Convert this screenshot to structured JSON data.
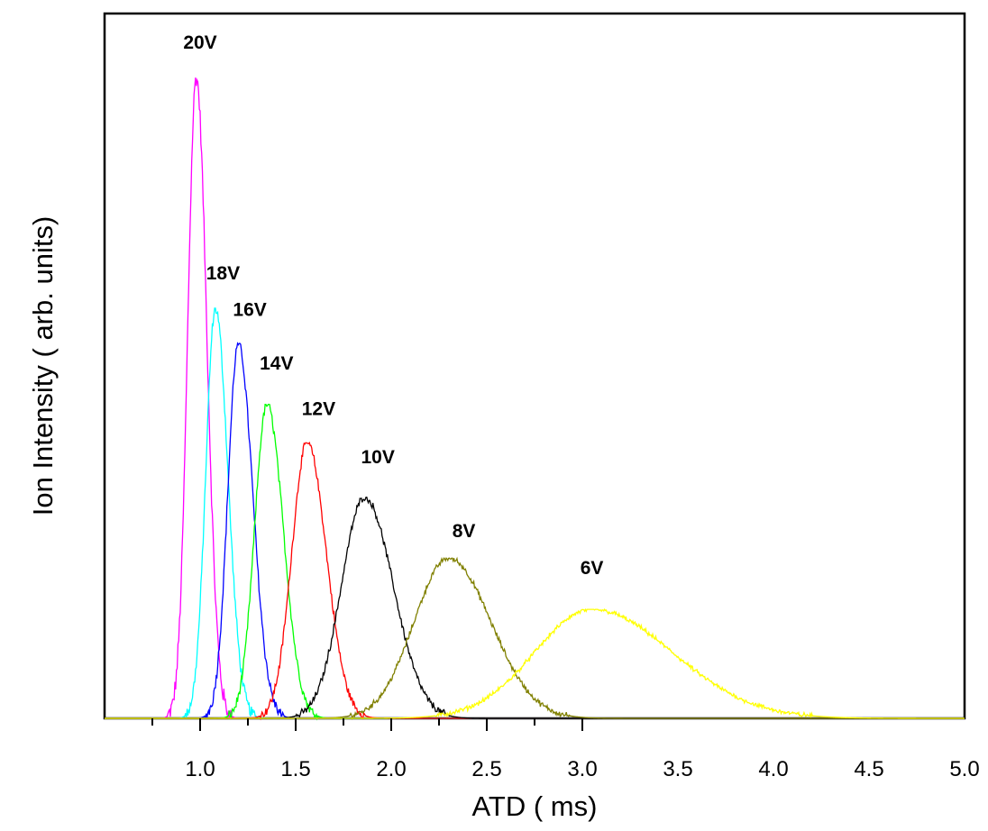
{
  "chart_data": {
    "type": "line",
    "title": "",
    "xlabel": "ATD ( ms)",
    "ylabel": "Ion Intensity ( arb. units)",
    "xlim": [
      0.5,
      5.0
    ],
    "ylim": [
      0,
      1.0
    ],
    "xticks": [
      "1.0",
      "1.5",
      "2.0",
      "2.5",
      "3.0",
      "3.5",
      "4.0",
      "4.5",
      "5.0"
    ],
    "yticks": [],
    "grid": false,
    "legend": "none",
    "series": [
      {
        "name": "20V",
        "label_x": 1.0,
        "label_y": 1.045,
        "color": "#ff00ff",
        "peak_x": 0.98,
        "peak_y": 1.0,
        "sigma_left": 0.045,
        "sigma_right": 0.055
      },
      {
        "name": "18V",
        "label_x": 1.12,
        "label_y": 0.685,
        "color": "#00ffff",
        "peak_x": 1.08,
        "peak_y": 0.64,
        "sigma_left": 0.05,
        "sigma_right": 0.065
      },
      {
        "name": "16V",
        "label_x": 1.26,
        "label_y": 0.628,
        "color": "#0000ff",
        "peak_x": 1.2,
        "peak_y": 0.585,
        "sigma_left": 0.055,
        "sigma_right": 0.075
      },
      {
        "name": "14V",
        "label_x": 1.4,
        "label_y": 0.544,
        "color": "#00ff00",
        "peak_x": 1.35,
        "peak_y": 0.49,
        "sigma_left": 0.065,
        "sigma_right": 0.085
      },
      {
        "name": "12V",
        "label_x": 1.62,
        "label_y": 0.473,
        "color": "#ff0000",
        "peak_x": 1.56,
        "peak_y": 0.43,
        "sigma_left": 0.08,
        "sigma_right": 0.1
      },
      {
        "name": "10V",
        "label_x": 1.93,
        "label_y": 0.398,
        "color": "#000000",
        "peak_x": 1.86,
        "peak_y": 0.345,
        "sigma_left": 0.12,
        "sigma_right": 0.15
      },
      {
        "name": "8V",
        "label_x": 2.38,
        "label_y": 0.283,
        "color": "#808000",
        "peak_x": 2.3,
        "peak_y": 0.25,
        "sigma_left": 0.18,
        "sigma_right": 0.22
      },
      {
        "name": "6V",
        "label_x": 3.05,
        "label_y": 0.225,
        "color": "#ffff00",
        "peak_x": 3.05,
        "peak_y": 0.17,
        "sigma_left": 0.3,
        "sigma_right": 0.42
      }
    ]
  }
}
